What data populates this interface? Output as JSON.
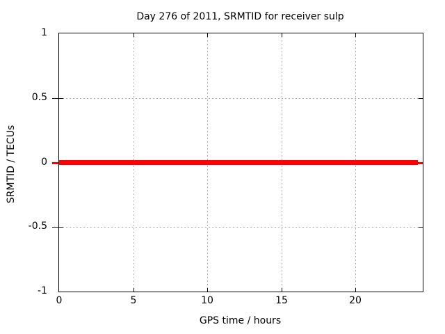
{
  "chart_data": {
    "type": "line",
    "title": "Day 276 of 2011, SRMTID for receiver sulp",
    "xlabel": "GPS time / hours",
    "ylabel": "SRMTID / TECUs",
    "xlim": [
      0,
      24.55
    ],
    "ylim": [
      -1,
      1
    ],
    "grid": true,
    "legend": false,
    "x_ticks": [
      {
        "value": 0,
        "label": "0"
      },
      {
        "value": 5,
        "label": "5"
      },
      {
        "value": 10,
        "label": "10"
      },
      {
        "value": 15,
        "label": "15"
      },
      {
        "value": 20,
        "label": "20"
      }
    ],
    "y_ticks": [
      {
        "value": -1,
        "label": "-1"
      },
      {
        "value": -0.5,
        "label": "-0.5"
      },
      {
        "value": 0,
        "label": "0"
      },
      {
        "value": 0.5,
        "label": "0.5"
      },
      {
        "value": 1,
        "label": "1"
      }
    ],
    "series": [
      {
        "name": "SRMTID",
        "color": "#ff0000",
        "line_width": 7,
        "x": [
          0,
          24.2
        ],
        "y": [
          0,
          0
        ]
      }
    ]
  },
  "colors": {
    "background": "#ffffff",
    "border": "#000000",
    "text": "#000000",
    "grid": "#a8a8a8",
    "series_red": "#ff0000"
  }
}
